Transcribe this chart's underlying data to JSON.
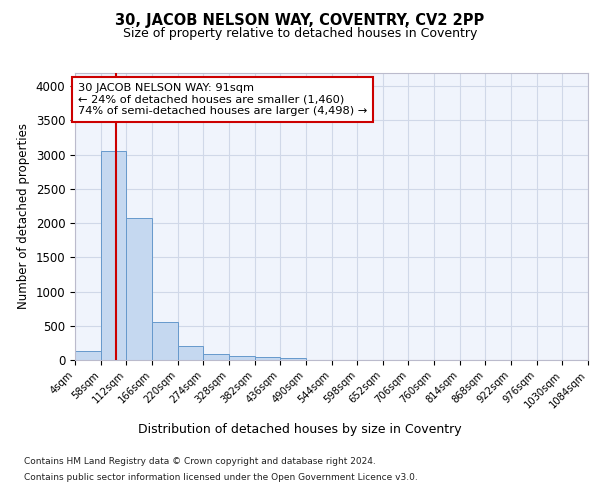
{
  "title1": "30, JACOB NELSON WAY, COVENTRY, CV2 2PP",
  "title2": "Size of property relative to detached houses in Coventry",
  "xlabel": "Distribution of detached houses by size in Coventry",
  "ylabel": "Number of detached properties",
  "footnote1": "Contains HM Land Registry data © Crown copyright and database right 2024.",
  "footnote2": "Contains public sector information licensed under the Open Government Licence v3.0.",
  "annotation_line1": "30 JACOB NELSON WAY: 91sqm",
  "annotation_line2": "← 24% of detached houses are smaller (1,460)",
  "annotation_line3": "74% of semi-detached houses are larger (4,498) →",
  "property_size": 91,
  "bar_edges": [
    4,
    58,
    112,
    166,
    220,
    274,
    328,
    382,
    436,
    490,
    544,
    598,
    652,
    706,
    760,
    814,
    868,
    922,
    976,
    1030,
    1084
  ],
  "bar_heights": [
    130,
    3060,
    2080,
    550,
    210,
    85,
    55,
    40,
    35,
    0,
    0,
    0,
    0,
    0,
    0,
    0,
    0,
    0,
    0,
    0
  ],
  "bar_color": "#c5d8f0",
  "bar_edge_color": "#6699cc",
  "red_line_color": "#cc0000",
  "box_edge_color": "#cc0000",
  "grid_color": "#d0d8e8",
  "background_color": "#f0f4fc",
  "ylim": [
    0,
    4200
  ],
  "yticks": [
    0,
    500,
    1000,
    1500,
    2000,
    2500,
    3000,
    3500,
    4000
  ]
}
